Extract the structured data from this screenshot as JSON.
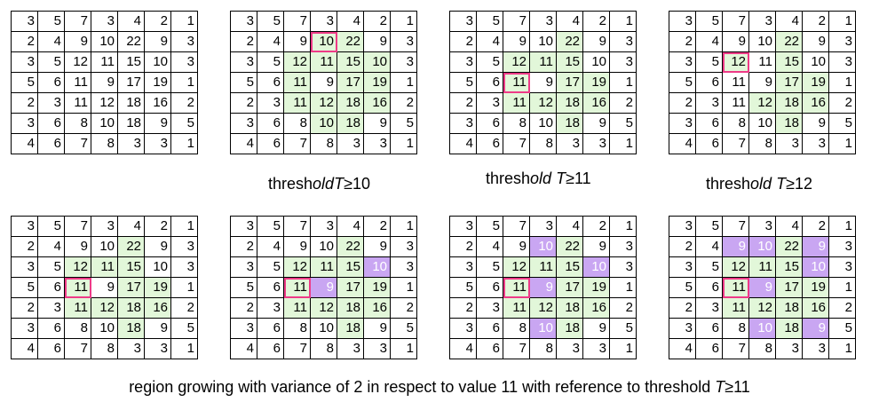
{
  "base_matrix": [
    [
      3,
      5,
      7,
      3,
      4,
      2,
      1
    ],
    [
      2,
      4,
      9,
      10,
      22,
      9,
      3
    ],
    [
      3,
      5,
      12,
      11,
      15,
      10,
      3
    ],
    [
      5,
      6,
      11,
      9,
      17,
      19,
      1
    ],
    [
      2,
      3,
      11,
      12,
      18,
      16,
      2
    ],
    [
      3,
      6,
      8,
      10,
      18,
      9,
      5
    ],
    [
      4,
      6,
      7,
      8,
      3,
      3,
      1
    ]
  ],
  "colors": {
    "green_region": "#e2f7d9",
    "purple_region": "#c9a6f2",
    "seed_outline": "#ee3a87"
  },
  "captions": {
    "t10_prefix": "thresh",
    "t10_suffix": "old",
    "t10_var": "T",
    "t10_cond": "≥10",
    "t11_prefix": "thresh",
    "t11_suffix": "old ",
    "t11_var": "T",
    "t11_cond": "≥11",
    "t12_prefix": "thresh",
    "t12_suffix": "old ",
    "t12_var": "T",
    "t12_cond": "≥12",
    "bottom_text": "region growing with variance of 2 in respect to value 11 with reference to threshold ",
    "bottom_var": "T",
    "bottom_cond": "≥11"
  },
  "grids": [
    {
      "name": "original",
      "seed": null,
      "green": [],
      "purple": []
    },
    {
      "name": "threshold-10",
      "seed": [
        1,
        3
      ],
      "green": [
        [
          1,
          3
        ],
        [
          1,
          4
        ],
        [
          2,
          2
        ],
        [
          2,
          3
        ],
        [
          2,
          4
        ],
        [
          2,
          5
        ],
        [
          3,
          2
        ],
        [
          3,
          4
        ],
        [
          3,
          5
        ],
        [
          4,
          2
        ],
        [
          4,
          3
        ],
        [
          4,
          4
        ],
        [
          4,
          5
        ],
        [
          5,
          3
        ],
        [
          5,
          4
        ]
      ],
      "purple": []
    },
    {
      "name": "threshold-11",
      "seed": [
        3,
        2
      ],
      "green": [
        [
          1,
          4
        ],
        [
          2,
          2
        ],
        [
          2,
          3
        ],
        [
          2,
          4
        ],
        [
          3,
          2
        ],
        [
          3,
          4
        ],
        [
          3,
          5
        ],
        [
          4,
          2
        ],
        [
          4,
          3
        ],
        [
          4,
          4
        ],
        [
          4,
          5
        ],
        [
          5,
          4
        ]
      ],
      "purple": []
    },
    {
      "name": "threshold-12",
      "seed": [
        2,
        2
      ],
      "green": [
        [
          1,
          4
        ],
        [
          2,
          2
        ],
        [
          2,
          4
        ],
        [
          3,
          4
        ],
        [
          3,
          5
        ],
        [
          4,
          3
        ],
        [
          4,
          4
        ],
        [
          4,
          5
        ],
        [
          5,
          4
        ]
      ],
      "purple": []
    },
    {
      "name": "growing-step-1",
      "seed": [
        3,
        2
      ],
      "green": [
        [
          1,
          4
        ],
        [
          2,
          2
        ],
        [
          2,
          3
        ],
        [
          2,
          4
        ],
        [
          3,
          2
        ],
        [
          3,
          4
        ],
        [
          3,
          5
        ],
        [
          4,
          2
        ],
        [
          4,
          3
        ],
        [
          4,
          4
        ],
        [
          4,
          5
        ],
        [
          5,
          4
        ]
      ],
      "purple": []
    },
    {
      "name": "growing-step-2",
      "seed": [
        3,
        2
      ],
      "green": [
        [
          1,
          4
        ],
        [
          2,
          2
        ],
        [
          2,
          3
        ],
        [
          2,
          4
        ],
        [
          3,
          2
        ],
        [
          3,
          4
        ],
        [
          3,
          5
        ],
        [
          4,
          2
        ],
        [
          4,
          3
        ],
        [
          4,
          4
        ],
        [
          4,
          5
        ],
        [
          5,
          4
        ]
      ],
      "purple": [
        [
          2,
          5
        ],
        [
          3,
          3
        ]
      ]
    },
    {
      "name": "growing-step-3",
      "seed": [
        3,
        2
      ],
      "green": [
        [
          1,
          4
        ],
        [
          2,
          2
        ],
        [
          2,
          3
        ],
        [
          2,
          4
        ],
        [
          3,
          2
        ],
        [
          3,
          4
        ],
        [
          3,
          5
        ],
        [
          4,
          2
        ],
        [
          4,
          3
        ],
        [
          4,
          4
        ],
        [
          4,
          5
        ],
        [
          5,
          4
        ]
      ],
      "purple": [
        [
          1,
          3
        ],
        [
          2,
          5
        ],
        [
          3,
          3
        ],
        [
          5,
          3
        ]
      ]
    },
    {
      "name": "growing-step-4",
      "seed": [
        3,
        2
      ],
      "green": [
        [
          1,
          4
        ],
        [
          2,
          2
        ],
        [
          2,
          3
        ],
        [
          2,
          4
        ],
        [
          3,
          2
        ],
        [
          3,
          4
        ],
        [
          3,
          5
        ],
        [
          4,
          2
        ],
        [
          4,
          3
        ],
        [
          4,
          4
        ],
        [
          4,
          5
        ],
        [
          5,
          4
        ]
      ],
      "purple": [
        [
          1,
          2
        ],
        [
          1,
          3
        ],
        [
          1,
          5
        ],
        [
          2,
          5
        ],
        [
          3,
          3
        ],
        [
          5,
          3
        ],
        [
          5,
          5
        ]
      ]
    }
  ]
}
